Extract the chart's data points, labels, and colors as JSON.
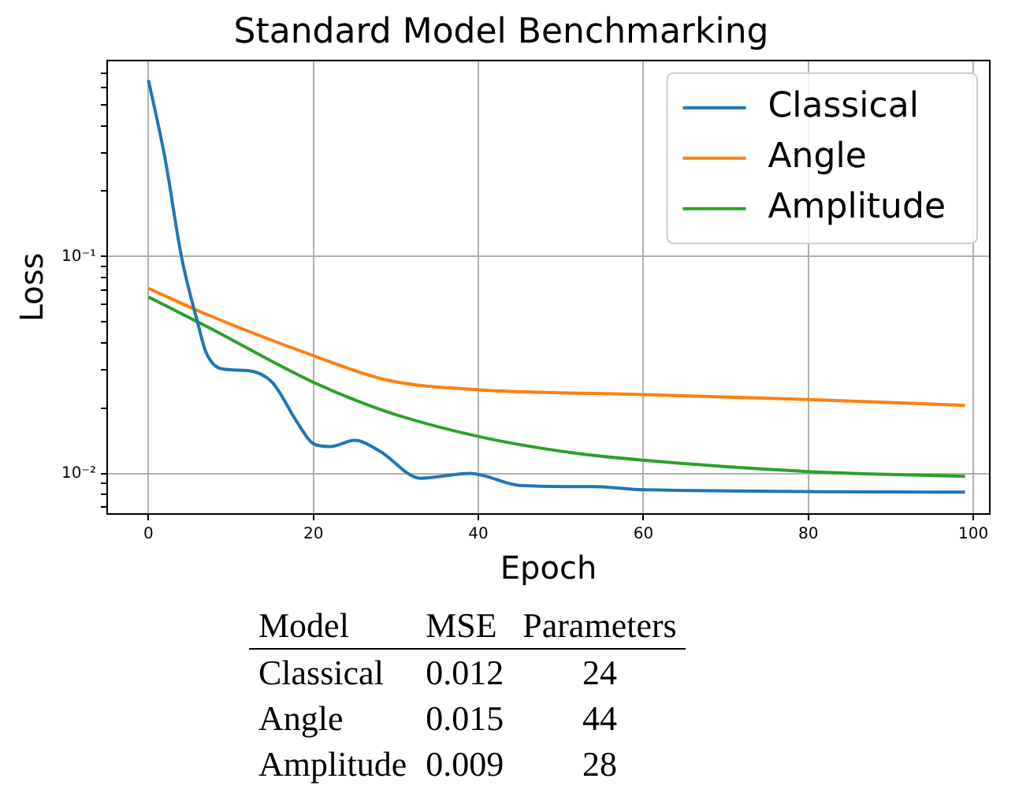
{
  "chart_data": {
    "type": "line",
    "title": "Standard Model Benchmarking",
    "xlabel": "Epoch",
    "ylabel": "Loss",
    "series": [
      {
        "name": "Classical",
        "color": "#1f77b4",
        "x": [
          0,
          2,
          4,
          6,
          7,
          9,
          12,
          15,
          18,
          20,
          22,
          25,
          28,
          33,
          39,
          45,
          51,
          54,
          60,
          99
        ],
        "values": [
          0.65,
          0.285,
          0.1,
          0.049,
          0.036,
          0.0303,
          0.0298,
          0.0263,
          0.0173,
          0.0137,
          0.0133,
          0.0142,
          0.0127,
          0.0095,
          0.01,
          0.0088,
          0.0087,
          0.0087,
          0.0084,
          0.0082
        ]
      },
      {
        "name": "Angle",
        "color": "#ff7f0e",
        "x": [
          0,
          7,
          20,
          29,
          40,
          51,
          60,
          80,
          99
        ],
        "values": [
          0.0713,
          0.0542,
          0.0349,
          0.0269,
          0.0243,
          0.0235,
          0.0231,
          0.0219,
          0.0206
        ]
      },
      {
        "name": "Amplitude",
        "color": "#2ca02c",
        "x": [
          0,
          7,
          20,
          29,
          40,
          51,
          60,
          80,
          99
        ],
        "values": [
          0.065,
          0.0477,
          0.0263,
          0.0192,
          0.0148,
          0.0125,
          0.0115,
          0.0102,
          0.0097
        ]
      }
    ],
    "log": "y",
    "xlim": [
      -5,
      102
    ],
    "xticks": [
      0,
      20,
      40,
      60,
      80,
      100
    ],
    "ylim": [
      0.0065,
      0.8
    ],
    "yticks": [
      {
        "value": 0.007,
        "label": null
      },
      {
        "value": 0.008,
        "label": null
      },
      {
        "value": 0.009,
        "label": null
      },
      {
        "value": 0.01,
        "label": "10⁻²"
      },
      {
        "value": 0.02,
        "label": null
      },
      {
        "value": 0.03,
        "label": null
      },
      {
        "value": 0.04,
        "label": null
      },
      {
        "value": 0.05,
        "label": null
      },
      {
        "value": 0.06,
        "label": null
      },
      {
        "value": 0.07,
        "label": null
      },
      {
        "value": 0.08,
        "label": null
      },
      {
        "value": 0.09,
        "label": null
      },
      {
        "value": 0.1,
        "label": "10⁻¹"
      },
      {
        "value": 0.2,
        "label": null
      },
      {
        "value": 0.3,
        "label": null
      },
      {
        "value": 0.4,
        "label": null
      },
      {
        "value": 0.5,
        "label": null
      },
      {
        "value": 0.6,
        "label": null
      },
      {
        "value": 0.7,
        "label": null
      }
    ],
    "grid": true,
    "legend": "top right",
    "annotations": [
      "Model",
      "MSE",
      "Parameters",
      "Classical",
      "0.012",
      "24",
      "Angle",
      "0.015",
      "44",
      "Amplitude",
      "0.009",
      "28"
    ]
  }
}
